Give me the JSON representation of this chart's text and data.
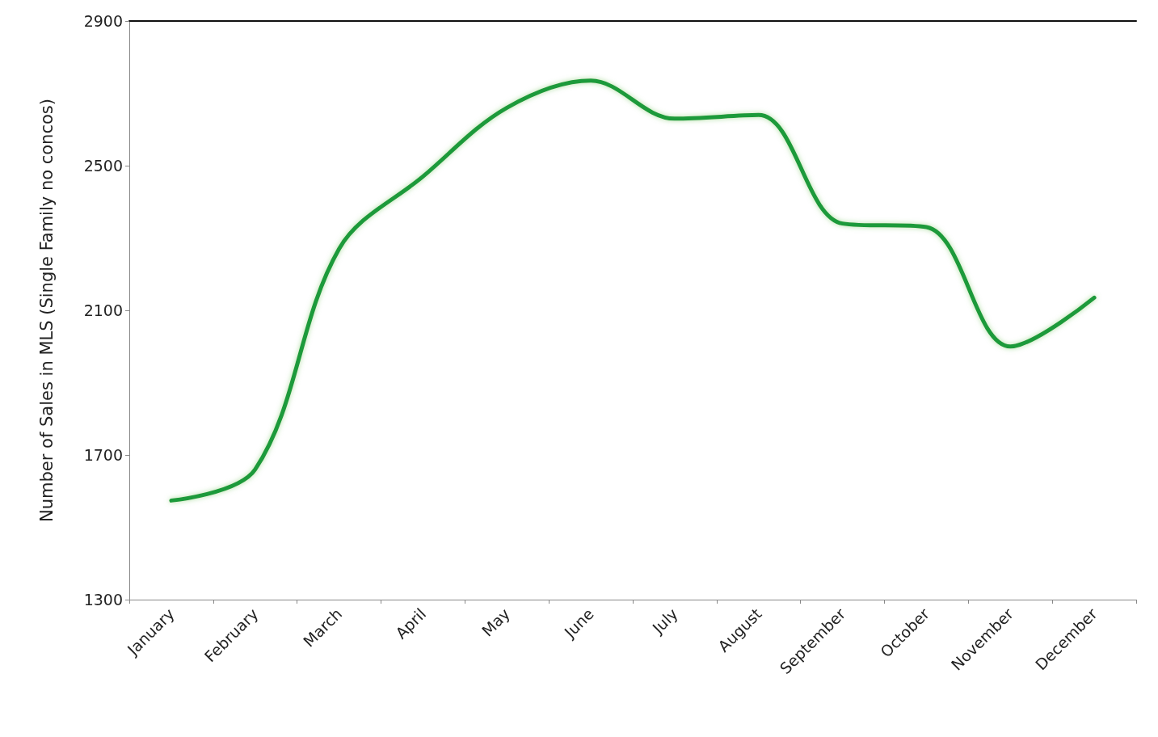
{
  "chart_data": {
    "type": "line",
    "ylabel": "Number of Sales in MLS (Single Family no concos)",
    "categories": [
      "January",
      "February",
      "March",
      "April",
      "May",
      "June",
      "July",
      "August",
      "September",
      "October",
      "November",
      "December"
    ],
    "series": [
      {
        "color": "#1e9a3a",
        "values": [
          1574,
          1660,
          2270,
          2470,
          2660,
          2735,
          2630,
          2640,
          2340,
          2330,
          2000,
          2135
        ]
      }
    ],
    "ylim": [
      1300,
      2900
    ],
    "yticks": [
      1300,
      1700,
      2100,
      2500,
      2900
    ],
    "grid": false,
    "marker": "none",
    "line_style": "solid"
  }
}
